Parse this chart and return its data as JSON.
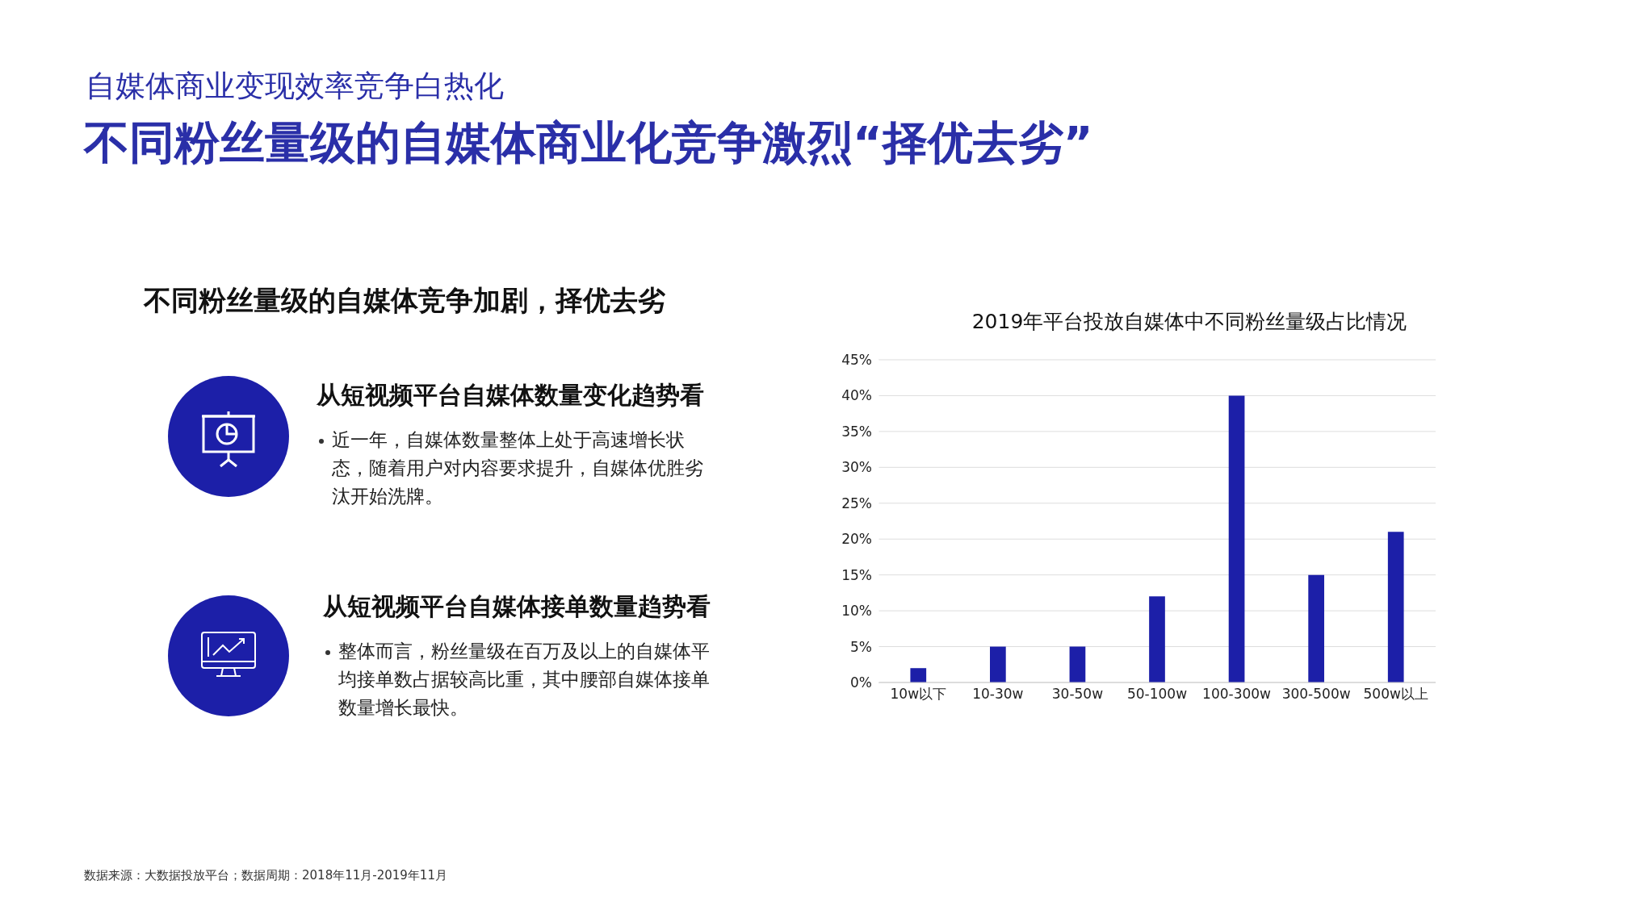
{
  "chart_data": {
    "type": "bar",
    "title": "2019年平台投放自媒体中不同粉丝量级占比情况",
    "categories": [
      "10w以下",
      "10-30w",
      "30-50w",
      "50-100w",
      "100-300w",
      "300-500w",
      "500w以上"
    ],
    "values": [
      2,
      5,
      5,
      12,
      40,
      15,
      21
    ],
    "color": "#1c1fa8",
    "ylim": [
      0,
      45
    ],
    "yticks": [
      {
        "value": 0,
        "label": "0%"
      },
      {
        "value": 5,
        "label": "5%"
      },
      {
        "value": 10,
        "label": "10%"
      },
      {
        "value": 15,
        "label": "15%"
      },
      {
        "value": 20,
        "label": "20%"
      },
      {
        "value": 25,
        "label": "25%"
      },
      {
        "value": 30,
        "label": "30%"
      },
      {
        "value": 35,
        "label": "35%"
      },
      {
        "value": 40,
        "label": "40%"
      },
      {
        "value": 45,
        "label": "45%"
      }
    ],
    "grid": "y",
    "annotations": [
      "自媒体商业变现效率竞争白热化",
      "不同粉丝量级的自媒体商业化竞争激烈“择优去劣”",
      "不同粉丝量级的自媒体竞争加剧，择优去劣",
      "从短视频平台自媒体数量变化趋势看",
      "近一年，自媒体数量整体上处于高速增长状态，随着用户对内容要求提升，自媒体优胜劣汰开始洗牌。",
      "从短视频平台自媒体接单数量趋势看",
      "整体而言，粉丝量级在百万及以上的自媒体平均接单数占据较高比重，其中腰部自媒体接单数量增长最快。",
      "数据来源：大数据投放平台；数据周期：2018年11月-2019年11月"
    ]
  }
}
